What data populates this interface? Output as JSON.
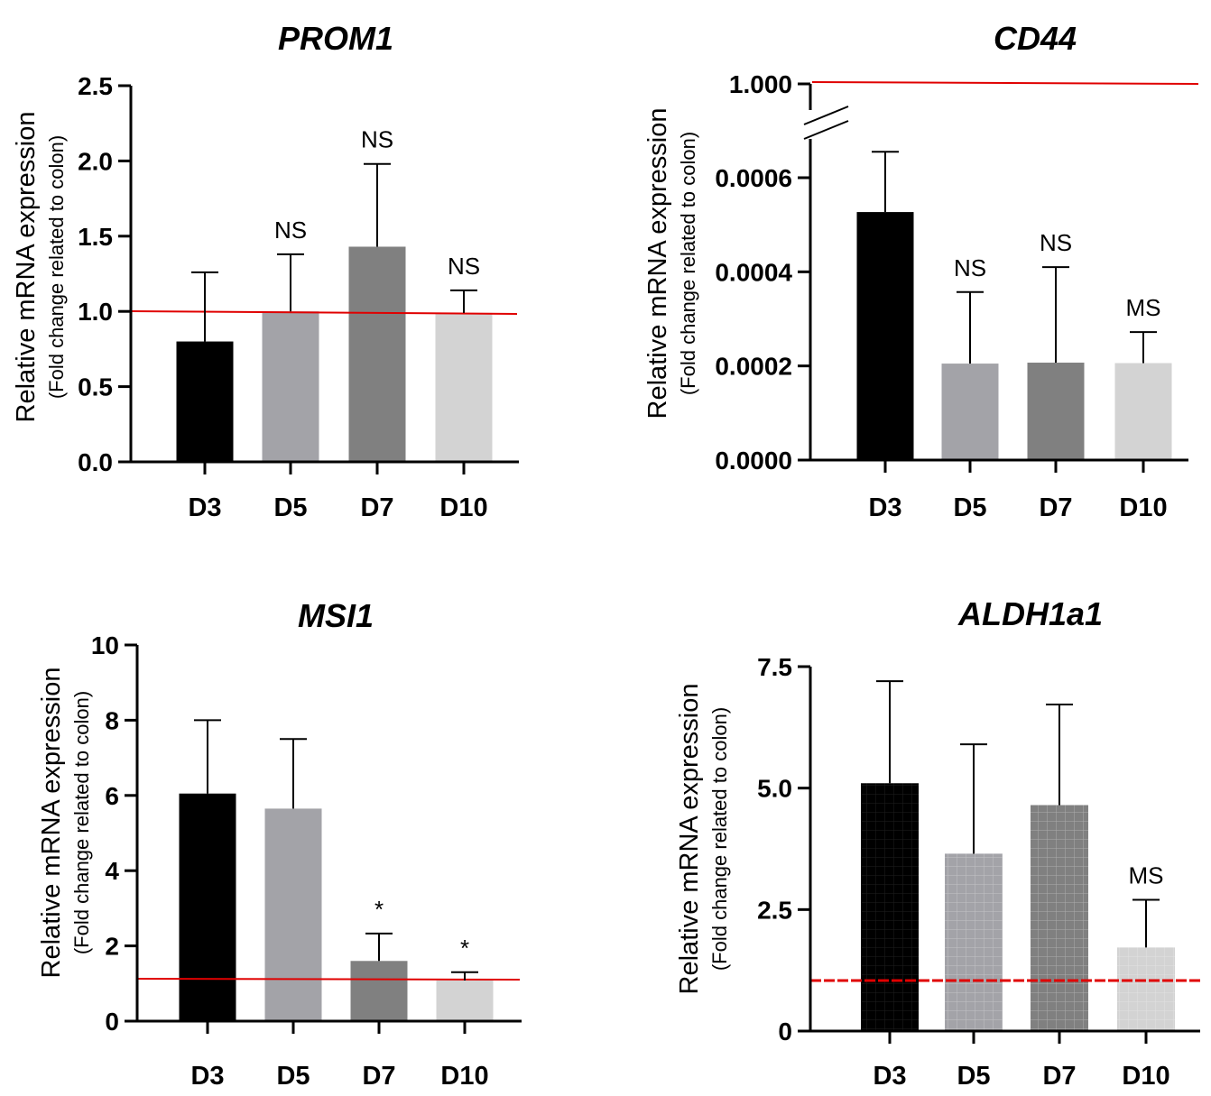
{
  "chart_data": [
    {
      "id": "prom1",
      "type": "bar",
      "title": "PROM1",
      "ylabel": "Relative mRNA expression",
      "ylabel_sub": "(Fold change related to colon)",
      "categories": [
        "D3",
        "D5",
        "D7",
        "D10"
      ],
      "values": [
        0.8,
        1.0,
        1.43,
        0.99
      ],
      "errors": [
        1.26,
        1.38,
        1.98,
        1.14
      ],
      "significance": [
        "",
        "NS",
        "NS",
        "NS"
      ],
      "bar_colors": [
        "#000000",
        "#a3a3a8",
        "#808080",
        "#d3d3d3"
      ],
      "ylim": [
        0,
        2.5
      ],
      "yticks": [
        "0.0",
        "0.5",
        "1.0",
        "1.5",
        "2.0",
        "2.5"
      ],
      "yticks_values": [
        0,
        0.5,
        1.0,
        1.5,
        2.0,
        2.5
      ],
      "reference_line": 1.0,
      "reference_color": "#e00000"
    },
    {
      "id": "cd44",
      "type": "bar",
      "title": "CD44",
      "ylabel": "Relative mRNA expression",
      "ylabel_sub": "(Fold change related to colon)",
      "categories": [
        "D3",
        "D5",
        "D7",
        "D10"
      ],
      "values": [
        0.000527,
        0.000205,
        0.000207,
        0.000206
      ],
      "errors": [
        0.000655,
        0.000357,
        0.00041,
        0.000272
      ],
      "significance": [
        "",
        "NS",
        "NS",
        "MS"
      ],
      "bar_colors": [
        "#000000",
        "#a3a3a8",
        "#808080",
        "#d3d3d3"
      ],
      "ylim": [
        0,
        0.0006
      ],
      "yticks": [
        "0.0000",
        "0.0002",
        "0.0004",
        "0.0006",
        "1.000"
      ],
      "yticks_values": [
        0,
        0.0002,
        0.0004,
        0.0006,
        1.0
      ],
      "axis_break": true,
      "reference_line": 1.0,
      "reference_color": "#e00000"
    },
    {
      "id": "msi1",
      "type": "bar",
      "title": "MSI1",
      "ylabel": "Relative mRNA expression",
      "ylabel_sub": "(Fold change related to colon)",
      "categories": [
        "D3",
        "D5",
        "D7",
        "D10"
      ],
      "values": [
        6.05,
        5.65,
        1.6,
        1.08
      ],
      "errors": [
        8.0,
        7.5,
        2.33,
        1.3
      ],
      "significance": [
        "",
        "",
        "*",
        "*"
      ],
      "bar_colors": [
        "#000000",
        "#a3a3a8",
        "#808080",
        "#d3d3d3"
      ],
      "ylim": [
        0,
        10
      ],
      "yticks": [
        "0",
        "2",
        "4",
        "6",
        "8",
        "10"
      ],
      "yticks_values": [
        0,
        2,
        4,
        6,
        8,
        10
      ],
      "reference_line": 1.1,
      "reference_color": "#e00000"
    },
    {
      "id": "aldh1a1",
      "type": "bar",
      "title": "ALDH1a1",
      "ylabel": "Relative mRNA expression",
      "ylabel_sub": "(Fold change related to colon)",
      "categories": [
        "D3",
        "D5",
        "D7",
        "D10"
      ],
      "values": [
        5.1,
        3.65,
        4.65,
        1.72
      ],
      "errors": [
        7.2,
        5.9,
        6.72,
        2.7
      ],
      "significance": [
        "",
        "",
        "",
        "MS"
      ],
      "bar_colors": [
        "#000000",
        "#a3a3a8",
        "#808080",
        "#d3d3d3"
      ],
      "ylim": [
        0,
        7.5
      ],
      "yticks": [
        "0",
        "2.5",
        "5.0",
        "7.5"
      ],
      "yticks_values": [
        0,
        2.5,
        5.0,
        7.5
      ],
      "grid_pattern": true,
      "reference_line": 1.0,
      "reference_color": "#e00000"
    }
  ]
}
